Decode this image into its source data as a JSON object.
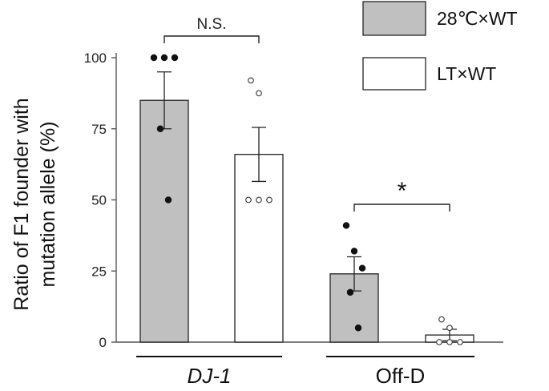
{
  "chart_data": {
    "type": "bar",
    "ylabel_line1": "Ratio of F1 founder with",
    "ylabel_line2": "mutation allele (%)",
    "ylim": [
      0,
      100
    ],
    "yticks": [
      0,
      25,
      50,
      75,
      100
    ],
    "ytick_labels": [
      "0",
      "25",
      "50",
      "75",
      "100"
    ],
    "groups": [
      {
        "label": "DJ-1",
        "italic": true
      },
      {
        "label": "Off-D",
        "italic": false
      }
    ],
    "series": [
      {
        "name": "28℃×WT",
        "fill": "#c0c0c0",
        "marker": "filled"
      },
      {
        "name": "LT×WT",
        "fill": "#ffffff",
        "marker": "open"
      }
    ],
    "bars": [
      {
        "group": 0,
        "series": 0,
        "mean": 85,
        "sem": 10,
        "points": [
          100,
          100,
          100,
          75,
          50
        ]
      },
      {
        "group": 0,
        "series": 1,
        "mean": 66,
        "sem": 9.5,
        "points": [
          92,
          87.5,
          50,
          50,
          50
        ]
      },
      {
        "group": 1,
        "series": 0,
        "mean": 24,
        "sem": 6,
        "points": [
          41,
          32,
          26,
          17.5,
          5
        ]
      },
      {
        "group": 1,
        "series": 1,
        "mean": 2.5,
        "sem": 2,
        "points": [
          8,
          5,
          0,
          0,
          0
        ]
      }
    ],
    "annotations": [
      {
        "group": 0,
        "text": "N.S.",
        "kind": "ns"
      },
      {
        "group": 1,
        "text": "*",
        "kind": "star"
      }
    ]
  }
}
